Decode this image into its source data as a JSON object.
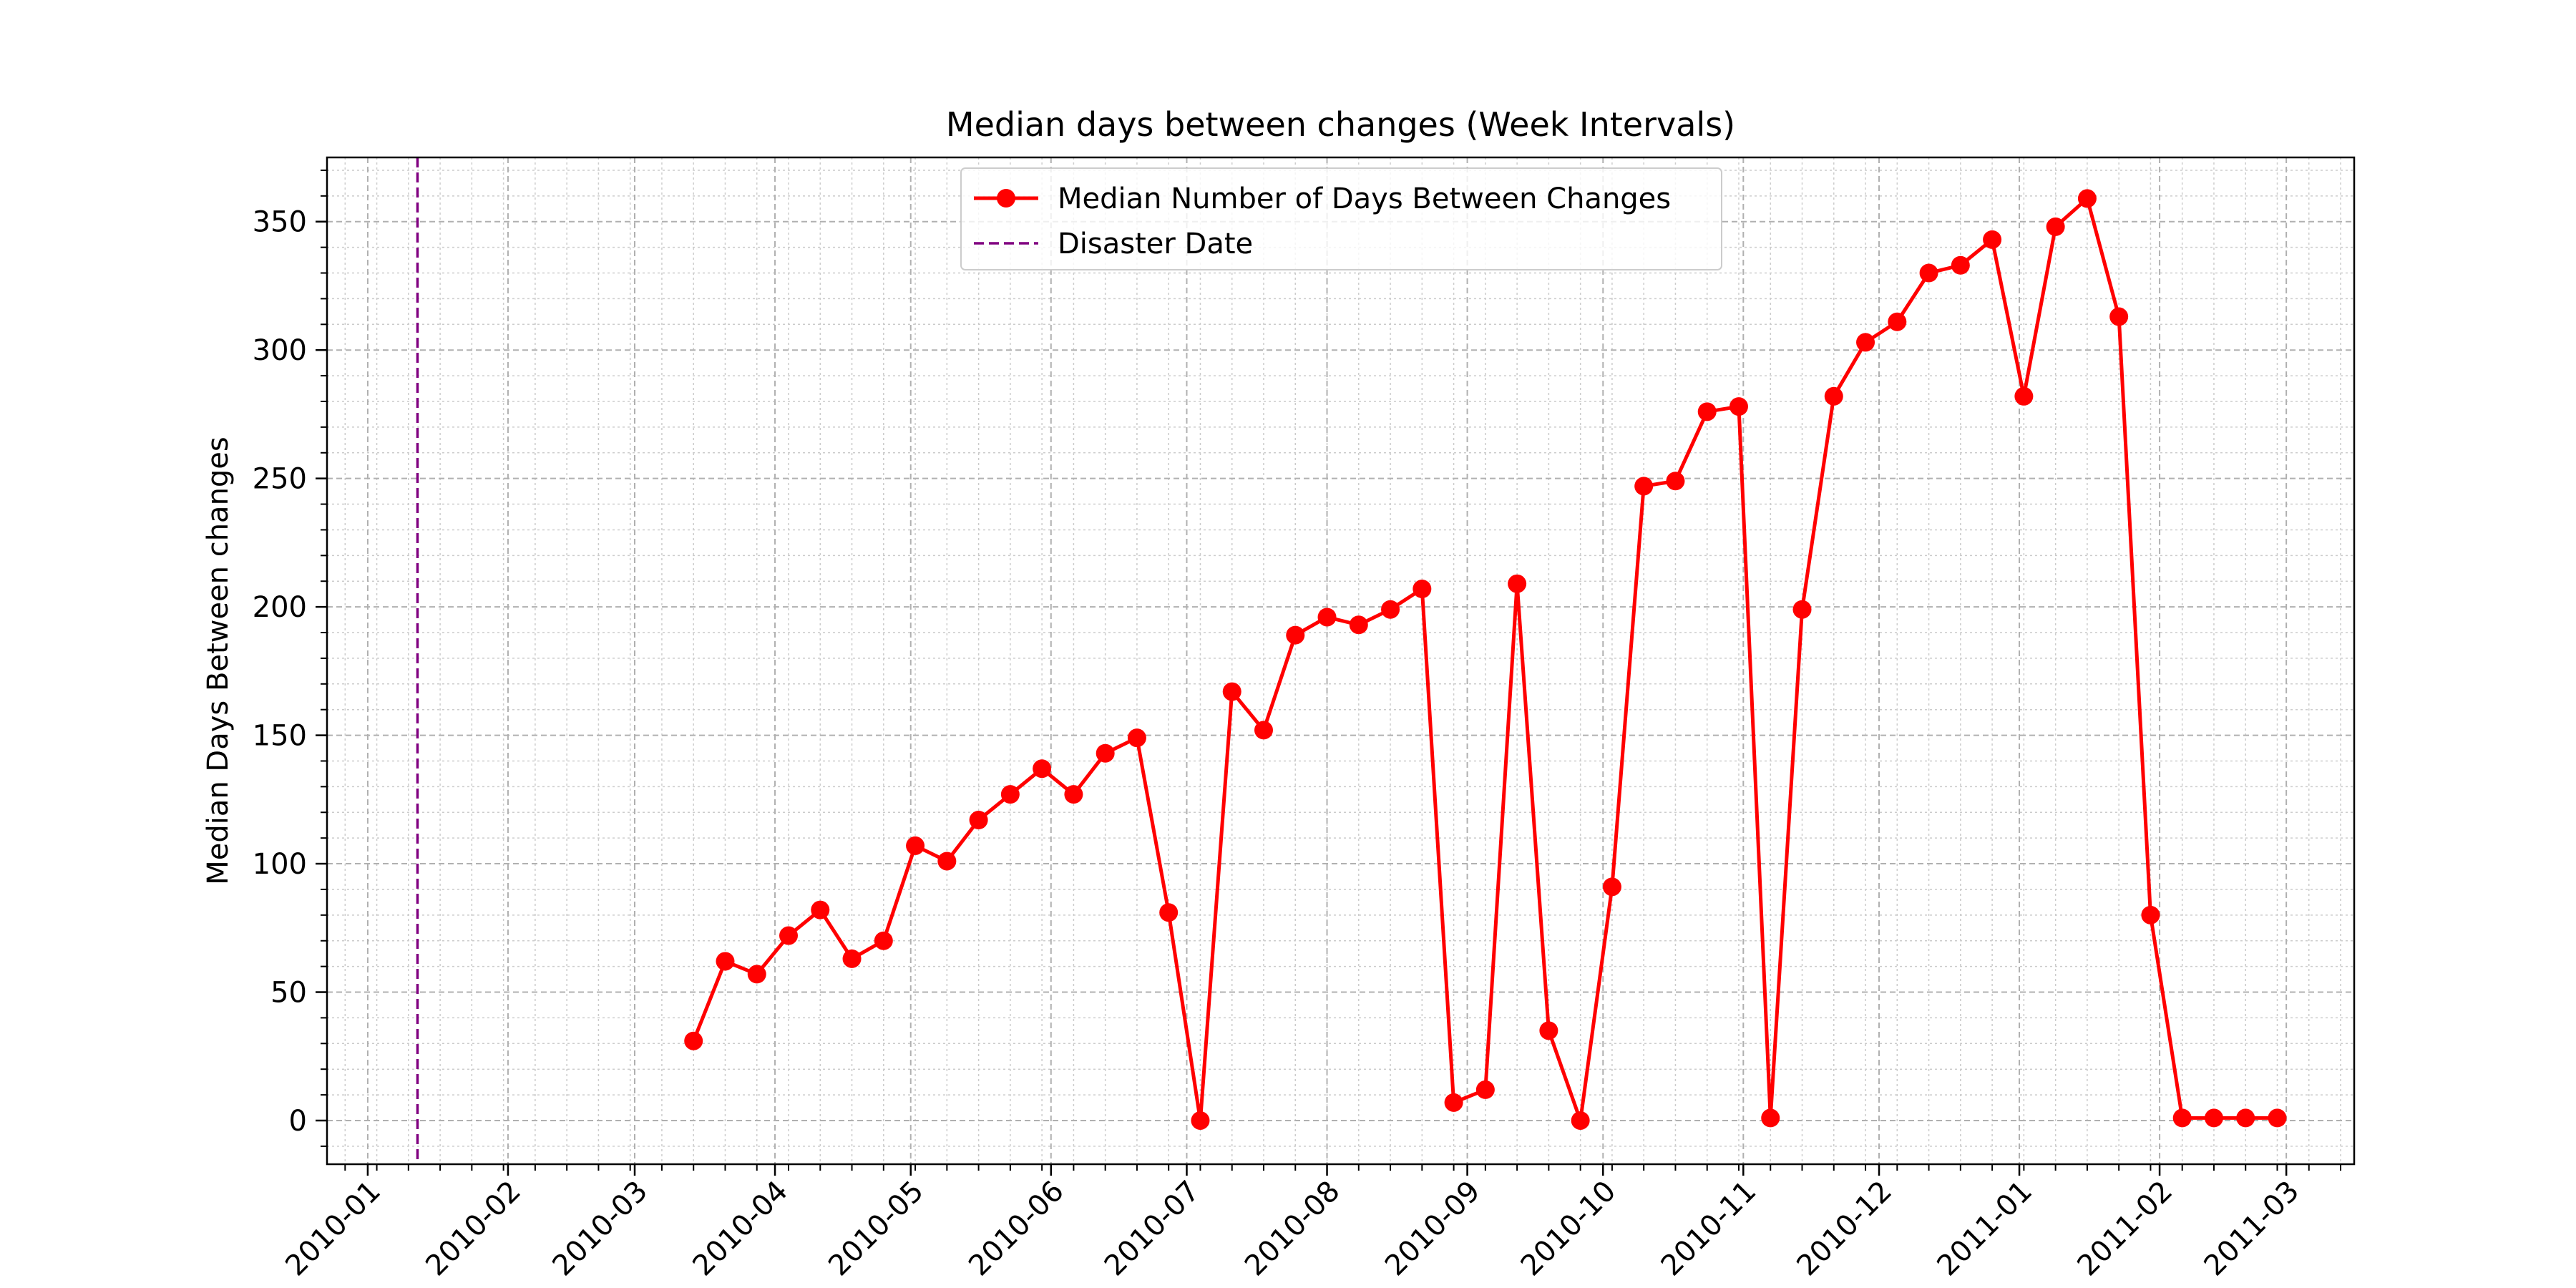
{
  "chart_data": {
    "type": "line",
    "title": "Median days between changes (Week Intervals)",
    "xlabel": "",
    "ylabel": "Median Days Between changes",
    "xlim": [
      "2009-12-23",
      "2011-03-16"
    ],
    "ylim": [
      -17,
      375
    ],
    "x_ticks": [
      "2010-01",
      "2010-02",
      "2010-03",
      "2010-04",
      "2010-05",
      "2010-06",
      "2010-07",
      "2010-08",
      "2010-09",
      "2010-10",
      "2010-11",
      "2010-12",
      "2011-01",
      "2011-02",
      "2011-03"
    ],
    "y_ticks": [
      0,
      50,
      100,
      150,
      200,
      250,
      300,
      350
    ],
    "grid": true,
    "legend_position": "upper-center",
    "series": [
      {
        "name": "Median Number of Days Between Changes",
        "color": "#ff0000",
        "marker": "circle",
        "x": [
          "2010-03-14",
          "2010-03-21",
          "2010-03-28",
          "2010-04-04",
          "2010-04-11",
          "2010-04-18",
          "2010-04-25",
          "2010-05-02",
          "2010-05-09",
          "2010-05-16",
          "2010-05-23",
          "2010-05-30",
          "2010-06-06",
          "2010-06-13",
          "2010-06-20",
          "2010-06-27",
          "2010-07-04",
          "2010-07-11",
          "2010-07-18",
          "2010-07-25",
          "2010-08-01",
          "2010-08-08",
          "2010-08-15",
          "2010-08-22",
          "2010-08-29",
          "2010-09-05",
          "2010-09-12",
          "2010-09-19",
          "2010-09-26",
          "2010-10-03",
          "2010-10-10",
          "2010-10-17",
          "2010-10-24",
          "2010-10-31",
          "2010-11-07",
          "2010-11-14",
          "2010-11-21",
          "2010-11-28",
          "2010-12-05",
          "2010-12-12",
          "2010-12-19",
          "2010-12-26",
          "2011-01-02",
          "2011-01-09",
          "2011-01-16",
          "2011-01-23",
          "2011-01-30",
          "2011-02-06",
          "2011-02-13",
          "2011-02-20",
          "2011-02-27"
        ],
        "y": [
          31,
          62,
          57,
          72,
          82,
          63,
          70,
          107,
          101,
          117,
          127,
          137,
          127,
          143,
          149,
          81,
          0,
          167,
          152,
          189,
          196,
          193,
          199,
          207,
          7,
          12,
          209,
          35,
          0,
          91,
          247,
          249,
          276,
          278,
          1,
          199,
          282,
          303,
          311,
          330,
          333,
          343,
          282,
          348,
          359,
          313,
          80,
          1,
          1,
          1,
          1
        ]
      },
      {
        "name": "Disaster Date",
        "color": "#800080",
        "style": "dashed",
        "x_value": "2010-01-12"
      }
    ]
  }
}
